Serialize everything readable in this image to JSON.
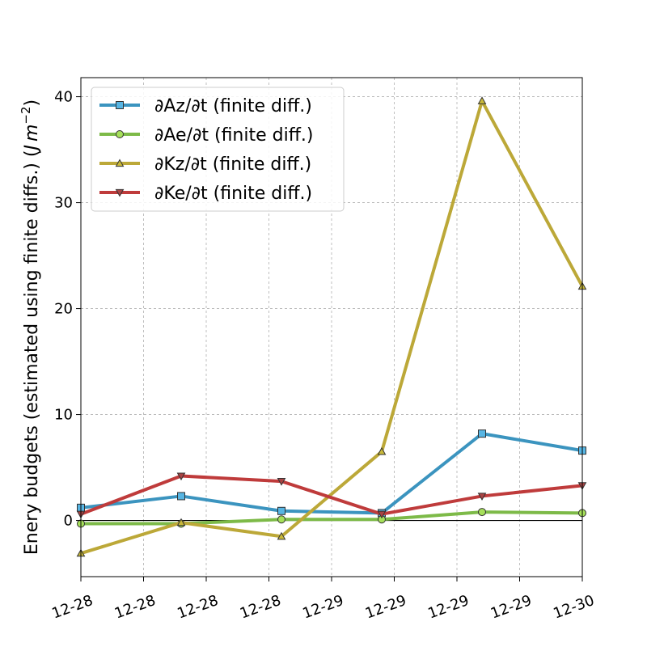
{
  "chart_data": {
    "type": "line",
    "xlabel": "",
    "ylabel_main": "Enery budgets (estimated using finite diffs.) (",
    "ylabel_unit_j": "J",
    "ylabel_unit_m": "m",
    "ylabel_unit_exp": "−2",
    "ylabel_close": ")",
    "x_tick_labels": [
      "12-28",
      "12-28",
      "12-28",
      "12-28",
      "12-29",
      "12-29",
      "12-29",
      "12-29",
      "12-30"
    ],
    "y_ticks": [
      0,
      10,
      20,
      30,
      40
    ],
    "ylim": [
      -5.3,
      41.8
    ],
    "grid": true,
    "zero_line": true,
    "legend_position": "top-left",
    "x_positions": [
      0,
      1.6,
      3.2,
      4.8,
      6.4,
      8.0
    ],
    "series": [
      {
        "name": "∂Az/∂t (finite diff.)",
        "color": "#3b94bf",
        "marker": "square",
        "marker_fill": "#57b5e3",
        "values": [
          1.2,
          2.3,
          0.9,
          0.7,
          8.2,
          6.6
        ]
      },
      {
        "name": "∂Ae/∂t (finite diff.)",
        "color": "#7dba48",
        "marker": "circle",
        "marker_fill": "#a6e05a",
        "values": [
          -0.3,
          -0.3,
          0.1,
          0.1,
          0.8,
          0.7
        ]
      },
      {
        "name": "∂Kz/∂t (finite diff.)",
        "color": "#bca838",
        "marker": "triangle-up",
        "marker_fill": "#c9b93a",
        "values": [
          -3.1,
          -0.2,
          -1.5,
          6.5,
          39.6,
          22.1
        ]
      },
      {
        "name": "∂Ke/∂t (finite diff.)",
        "color": "#bf3b3b",
        "marker": "triangle-down",
        "marker_fill": "#a84444",
        "values": [
          0.6,
          4.2,
          3.7,
          0.6,
          2.3,
          3.3
        ]
      }
    ]
  }
}
